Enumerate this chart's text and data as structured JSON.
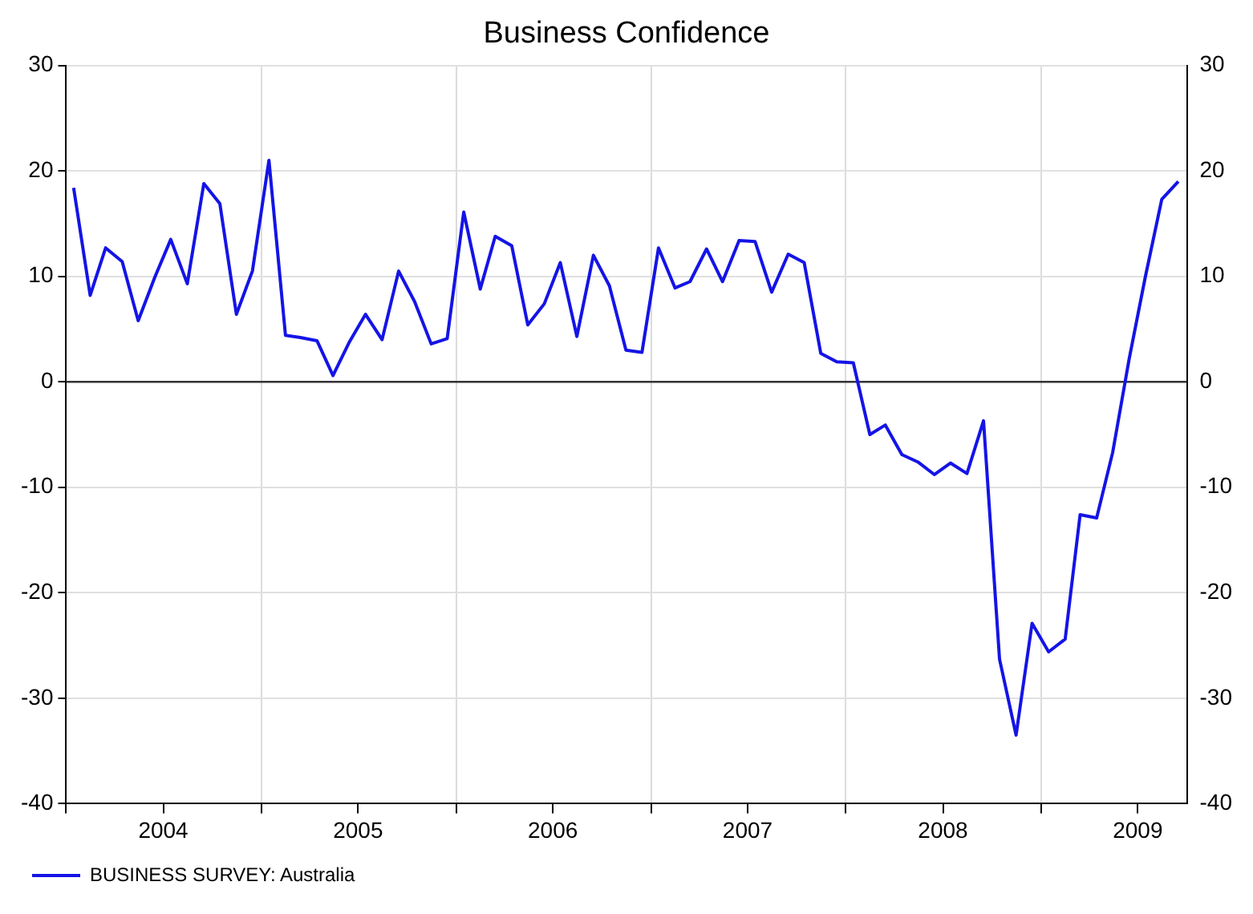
{
  "chart_data": {
    "type": "line",
    "title": "Business Confidence",
    "x": [
      "2004-01-15",
      "2004-02-15",
      "2004-03-15",
      "2004-04-15",
      "2004-05-15",
      "2004-06-15",
      "2004-07-15",
      "2004-08-15",
      "2004-09-15",
      "2004-10-15",
      "2004-11-15",
      "2004-12-15",
      "2005-01-15",
      "2005-02-15",
      "2005-03-15",
      "2005-04-15",
      "2005-05-15",
      "2005-06-15",
      "2005-07-15",
      "2005-08-15",
      "2005-09-15",
      "2005-10-15",
      "2005-11-15",
      "2005-12-15",
      "2006-01-15",
      "2006-02-15",
      "2006-03-15",
      "2006-04-15",
      "2006-05-15",
      "2006-06-15",
      "2006-07-15",
      "2006-08-15",
      "2006-09-15",
      "2006-10-15",
      "2006-11-15",
      "2006-12-15",
      "2007-01-15",
      "2007-02-15",
      "2007-03-15",
      "2007-04-15",
      "2007-05-15",
      "2007-06-15",
      "2007-07-15",
      "2007-08-15",
      "2007-09-15",
      "2007-10-15",
      "2007-11-15",
      "2007-12-15",
      "2008-01-15",
      "2008-02-15",
      "2008-03-15",
      "2008-04-15",
      "2008-05-15",
      "2008-06-15",
      "2008-07-15",
      "2008-08-15",
      "2008-09-15",
      "2008-10-15",
      "2008-11-15",
      "2008-12-15",
      "2009-01-15",
      "2009-02-15",
      "2009-03-15",
      "2009-04-15",
      "2009-05-15",
      "2009-06-15",
      "2009-07-15",
      "2009-08-15",
      "2009-09-15"
    ],
    "series": [
      {
        "name": "BUSINESS SURVEY: Australia",
        "color": "#1414e6",
        "values": [
          18.4,
          8.2,
          12.7,
          11.4,
          5.8,
          9.9,
          13.5,
          9.3,
          18.8,
          16.9,
          6.4,
          10.5,
          21.0,
          4.4,
          4.2,
          3.9,
          0.6,
          3.8,
          6.4,
          4.0,
          10.5,
          7.6,
          3.6,
          4.1,
          16.1,
          8.8,
          13.8,
          12.9,
          5.4,
          7.4,
          11.3,
          4.3,
          12.0,
          9.1,
          3.0,
          2.8,
          12.7,
          8.9,
          9.5,
          12.6,
          9.5,
          13.4,
          13.3,
          8.5,
          12.1,
          11.3,
          2.7,
          1.9,
          1.8,
          -5.0,
          -4.1,
          -6.9,
          -7.6,
          -8.8,
          -7.7,
          -8.7,
          -3.7,
          -26.3,
          -33.5,
          -22.9,
          -25.6,
          -24.4,
          -12.6,
          -12.9,
          -6.7,
          2.2,
          9.9,
          17.3,
          19.0
        ]
      }
    ],
    "xlim": [
      "2004-01-01",
      "2009-10-01"
    ],
    "xticks": [
      {
        "value": "2004-01-01",
        "label": null
      },
      {
        "value": "2004-07-01",
        "label": "2004"
      },
      {
        "value": "2005-01-01",
        "label": null
      },
      {
        "value": "2005-07-01",
        "label": "2005"
      },
      {
        "value": "2006-01-01",
        "label": null
      },
      {
        "value": "2006-07-01",
        "label": "2006"
      },
      {
        "value": "2007-01-01",
        "label": null
      },
      {
        "value": "2007-07-01",
        "label": "2007"
      },
      {
        "value": "2008-01-01",
        "label": null
      },
      {
        "value": "2008-07-01",
        "label": "2008"
      },
      {
        "value": "2009-01-01",
        "label": null
      },
      {
        "value": "2009-07-01",
        "label": "2009"
      }
    ],
    "ylim": [
      -40,
      30
    ],
    "yticks": [
      -40,
      -30,
      -20,
      -10,
      0,
      10,
      20,
      30
    ],
    "y2lim": [
      -40,
      30
    ],
    "y2ticks": [
      -40,
      -30,
      -20,
      -10,
      0,
      10,
      20,
      30
    ],
    "ref_lines": [
      {
        "axis": "y",
        "value": 0,
        "color": "#333333"
      }
    ],
    "grid": true,
    "legend": "bottom left",
    "marker": "none",
    "line_style": "solid"
  }
}
